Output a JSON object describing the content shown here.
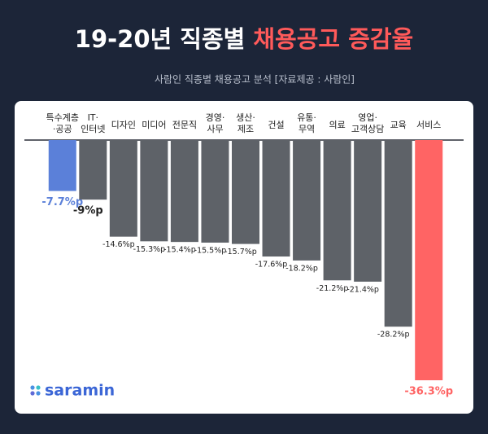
{
  "chart_data": {
    "type": "bar",
    "title": "19-20년 직종별",
    "title_highlight": "채용공고 증감율",
    "subtitle": "사람인 직종별 채용공고 분석 [자료제공 : 사람인]",
    "categories": [
      "특수계층\n·공공",
      "IT·\n인터넷",
      "디자인",
      "미디어",
      "전문직",
      "경영·\n사무",
      "생산·\n제조",
      "건설",
      "유통·\n무역",
      "의료",
      "영업·\n고객상담",
      "교육",
      "서비스"
    ],
    "values": [
      -7.7,
      -9,
      -14.6,
      -15.3,
      -15.4,
      -15.5,
      -15.7,
      -17.6,
      -18.2,
      -21.2,
      -21.4,
      -28.2,
      -36.3
    ],
    "value_labels": [
      "-7.7%p",
      "-9%p",
      "-14.6%p",
      "-15.3%p",
      "-15.4%p",
      "-15.5%p",
      "-15.7%p",
      "-17.6%p",
      "-18.2%p",
      "-21.2%p",
      "-21.4%p",
      "-28.2%p",
      "-36.3%p"
    ],
    "colors": [
      "#5b80d9",
      "#5e6268",
      "#5e6268",
      "#5e6268",
      "#5e6268",
      "#5e6268",
      "#5e6268",
      "#5e6268",
      "#5e6268",
      "#5e6268",
      "#5e6268",
      "#5e6268",
      "#ff6464"
    ],
    "ylim": [
      -36.3,
      0
    ],
    "logo": "saramin"
  }
}
